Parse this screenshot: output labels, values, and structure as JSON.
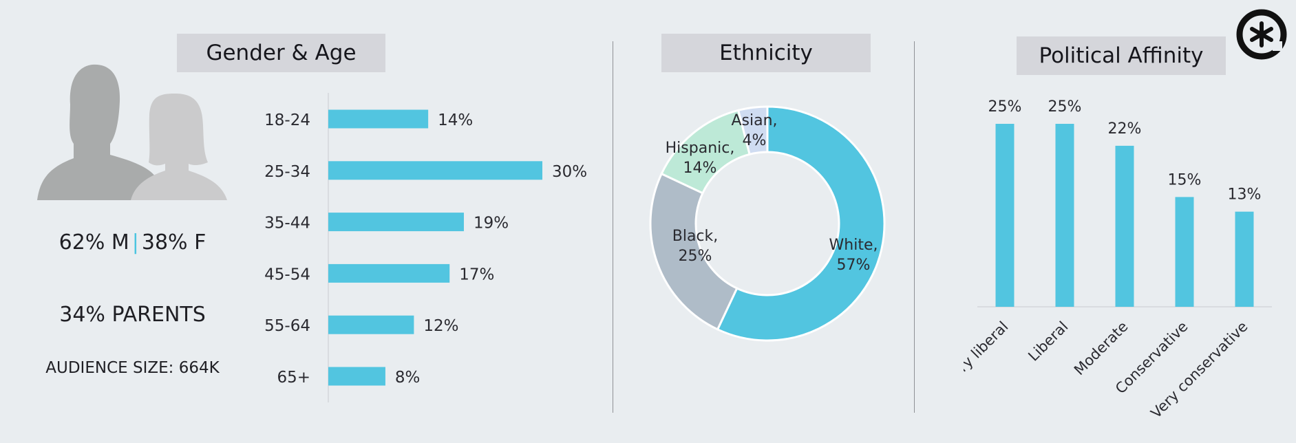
{
  "sections": {
    "gender_age_title": "Gender & Age",
    "ethnicity_title": "Ethnicity",
    "political_title": "Political Affinity"
  },
  "stats": {
    "male": "62% M",
    "separator": "|",
    "female": "38% F",
    "parents": "34% PARENTS",
    "audience_size": "AUDIENCE SIZE: 664K"
  },
  "colors": {
    "accent": "#52c5e0",
    "panel_title_bg": "#d5d6db",
    "background": "#e9edf0",
    "white_slice": "#52c5e0",
    "black_slice": "#afbcc8",
    "hispanic_slice": "#bde9d7",
    "asian_slice": "#cfdcf1"
  },
  "icons": [
    "male-silhouette-icon",
    "female-silhouette-icon",
    "asterisk-logo-icon"
  ],
  "chart_data": [
    {
      "type": "bar",
      "orientation": "horizontal",
      "categories": [
        "18-24",
        "25-34",
        "35-44",
        "45-54",
        "55-64",
        "65+"
      ],
      "values": [
        14,
        30,
        19,
        17,
        12,
        8
      ],
      "labels": [
        "14%",
        "30%",
        "19%",
        "17%",
        "12%",
        "8%"
      ],
      "xlim": [
        0,
        30
      ],
      "grid": false
    },
    {
      "type": "pie",
      "style": "donut",
      "categories": [
        "White",
        "Black",
        "Hispanic",
        "Asian"
      ],
      "values": [
        57,
        25,
        14,
        4
      ],
      "labels": [
        [
          "White,",
          "57%"
        ],
        [
          "Black,",
          "25%"
        ],
        [
          "Hispanic,",
          "14%"
        ],
        [
          "Asian,",
          "4%"
        ]
      ]
    },
    {
      "type": "bar",
      "orientation": "vertical",
      "categories": [
        "Very liberal",
        "Liberal",
        "Moderate",
        "Conservative",
        "Very conservative"
      ],
      "values": [
        25,
        25,
        22,
        15,
        13
      ],
      "labels": [
        "25%",
        "25%",
        "22%",
        "15%",
        "13%"
      ],
      "ylim": [
        0,
        25
      ],
      "grid": false
    }
  ]
}
